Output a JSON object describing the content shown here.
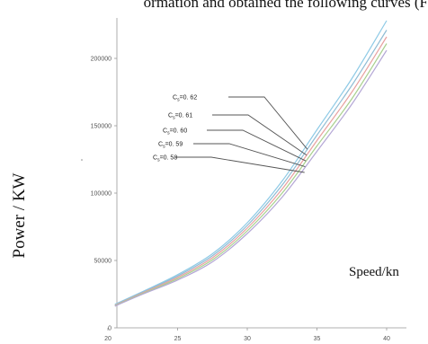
{
  "page": {
    "top_text": "ormation and obtained the following curves (F"
  },
  "chart_data": {
    "type": "line",
    "ylabel": "Power / KW",
    "xlabel": "Speed/kn",
    "xlim": [
      20,
      40
    ],
    "ylim": [
      0,
      230000
    ],
    "x_ticks": [
      "20",
      "25",
      "30",
      "35",
      "40"
    ],
    "y_ticks": [
      "0",
      "50000",
      "100000",
      "150000",
      "200000"
    ],
    "x": [
      20.5,
      22.5,
      25,
      27.5,
      30,
      32.5,
      35,
      37.5,
      40
    ],
    "series": [
      {
        "name": "Cs=0.62",
        "color": "#8ecae6",
        "values": [
          17500,
          27000,
          39500,
          55000,
          78000,
          109000,
          147000,
          185000,
          228000
        ]
      },
      {
        "name": "Cs=0.61",
        "color": "#8fbcd4",
        "values": [
          17000,
          26500,
          38500,
          53500,
          76000,
          106000,
          143000,
          180000,
          221000
        ]
      },
      {
        "name": "Cs=0.60",
        "color": "#e8a0a0",
        "values": [
          16700,
          26000,
          37500,
          52000,
          74000,
          103000,
          139000,
          175000,
          216000
        ]
      },
      {
        "name": "Cs=0.59",
        "color": "#a8d08d",
        "values": [
          16400,
          25500,
          36500,
          50500,
          72000,
          100000,
          135000,
          170000,
          211000
        ]
      },
      {
        "name": "Cs=0.58",
        "color": "#b4a7d6",
        "values": [
          16100,
          25000,
          35500,
          49000,
          70000,
          97000,
          131000,
          166000,
          206000
        ]
      }
    ],
    "annotations": [
      {
        "subscript_label": "C",
        "subscript": "s",
        "value_text": "=0. 62"
      },
      {
        "subscript_label": "C",
        "subscript": "s",
        "value_text": "=0. 61"
      },
      {
        "subscript_label": "C",
        "subscript": "s",
        "value_text": "=0. 60"
      },
      {
        "subscript_label": "C",
        "subscript": "s",
        "value_text": "=0. 59"
      },
      {
        "subscript_label": "C",
        "subscript": "s",
        "value_text": "=0. 58"
      }
    ]
  }
}
